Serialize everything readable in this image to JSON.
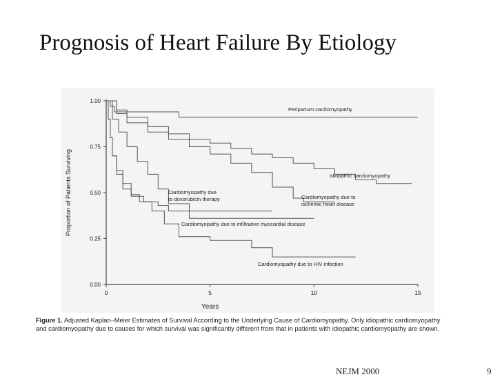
{
  "slide": {
    "title": "Prognosis of Heart Failure By Etiology",
    "source": "NEJM 2000",
    "page_number": "9"
  },
  "caption": {
    "lead": "Figure 1.",
    "text": "Adjusted Kaplan–Meier Estimates of Survival According to the Underlying Cause of Cardiomyopathy. Only idiopathic cardiomyopathy and cardiomyopathy due to causes for which survival was significantly different from that in patients with idiopathic cardiomyopathy are shown."
  },
  "colors": {
    "line": "#555555",
    "axis": "#444444",
    "text": "#222222",
    "panel": "#f4f4f4"
  },
  "chart_data": {
    "type": "line",
    "step": true,
    "title": "",
    "xlabel": "Years",
    "ylabel": "Proportion of Patients Surviving",
    "xlim": [
      0,
      15
    ],
    "ylim": [
      0,
      1
    ],
    "xticks": [
      0,
      5,
      10,
      15
    ],
    "xtick_labels": [
      "0",
      "5",
      "10",
      "15"
    ],
    "yticks": [
      0,
      0.25,
      0.5,
      0.75,
      1
    ],
    "ytick_labels": [
      "0.00",
      "0.25",
      "0.50",
      "0.75",
      "1.00"
    ],
    "grid": false,
    "legend": "none",
    "series": [
      {
        "name": "Peripartum cardiomyopathy",
        "x": [
          0,
          0.2,
          0.4,
          3.5,
          15
        ],
        "y": [
          1,
          0.97,
          0.94,
          0.91,
          0.91
        ]
      },
      {
        "name": "Idiopathic cardiomyopathy",
        "x": [
          0,
          0.5,
          1,
          2,
          3,
          4,
          5,
          6,
          7,
          8,
          9,
          10,
          11,
          12,
          13,
          14.7
        ],
        "y": [
          1,
          0.95,
          0.91,
          0.86,
          0.82,
          0.79,
          0.77,
          0.74,
          0.71,
          0.69,
          0.66,
          0.63,
          0.6,
          0.57,
          0.55,
          0.55
        ]
      },
      {
        "name": "Cardiomyopathy due to ischemic heart disease",
        "x": [
          0,
          0.5,
          1,
          2,
          3,
          4,
          5,
          6,
          7,
          8,
          9,
          9.5,
          11
        ],
        "y": [
          1,
          0.93,
          0.88,
          0.83,
          0.79,
          0.75,
          0.71,
          0.66,
          0.61,
          0.53,
          0.47,
          0.45,
          0.45
        ]
      },
      {
        "name": "Cardiomyopathy due to doxorubicin therapy",
        "x": [
          0,
          0.3,
          0.6,
          1,
          1.5,
          2,
          2.5,
          3,
          4,
          8
        ],
        "y": [
          1,
          0.9,
          0.83,
          0.75,
          0.67,
          0.6,
          0.52,
          0.44,
          0.4,
          0.4
        ]
      },
      {
        "name": "Cardiomyopathy due to infiltrative myocardial disease",
        "x": [
          0,
          0.1,
          0.2,
          0.3,
          0.5,
          0.8,
          1.2,
          1.8,
          2.5,
          3,
          4,
          10
        ],
        "y": [
          1,
          0.9,
          0.8,
          0.7,
          0.6,
          0.52,
          0.48,
          0.45,
          0.43,
          0.4,
          0.36,
          0.36
        ]
      },
      {
        "name": "Cardiomyopathy due to HIV infection",
        "x": [
          0,
          0.1,
          0.2,
          0.3,
          0.5,
          0.8,
          1.2,
          1.6,
          2.2,
          2.8,
          3.5,
          5,
          7,
          8,
          12
        ],
        "y": [
          1,
          0.9,
          0.8,
          0.7,
          0.62,
          0.55,
          0.49,
          0.45,
          0.4,
          0.33,
          0.26,
          0.24,
          0.2,
          0.15,
          0.15
        ]
      }
    ],
    "annotations": [
      {
        "text": "Peripartum cardiomyopathy",
        "series": 0
      },
      {
        "text": "Idiopathic cardiomyopathy",
        "series": 1
      },
      {
        "lines": [
          "Cardiomyopathy due to",
          "ischemic heart disease"
        ],
        "series": 2
      },
      {
        "lines": [
          "Cardiomyopathy due",
          "to doxorubicin therapy"
        ],
        "series": 3
      },
      {
        "text": "Cardiomyopathy due to infiltrative myocardial disease",
        "series": 4
      },
      {
        "text": "Cardiomyopathy due to HIV infection",
        "series": 5
      }
    ]
  }
}
